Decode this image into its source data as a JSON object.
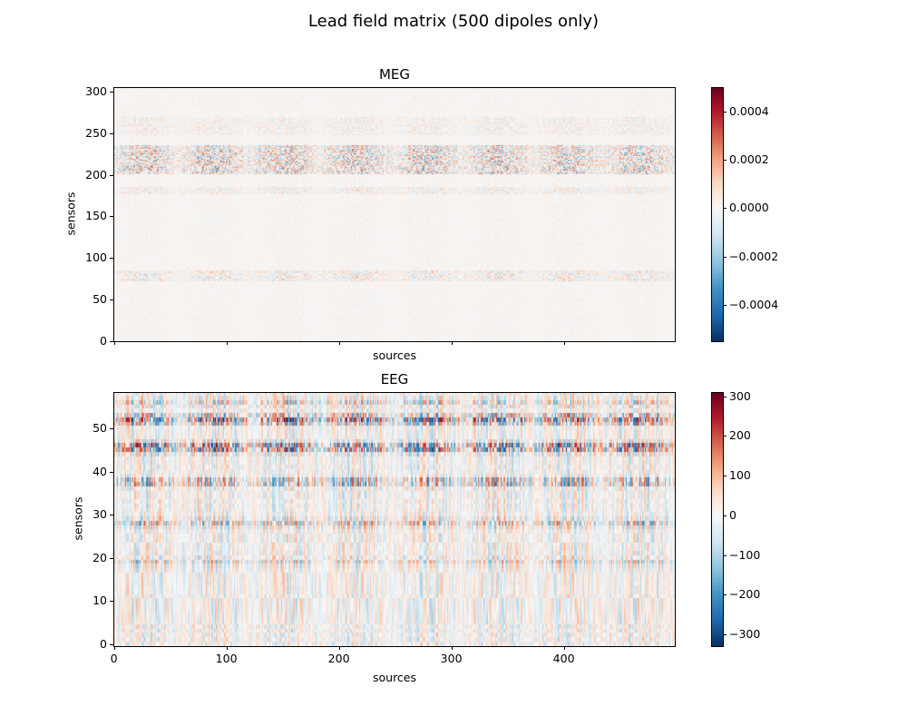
{
  "suptitle": "Lead field matrix (500 dipoles only)",
  "chart_data": [
    {
      "type": "heatmap",
      "title": "MEG",
      "xlabel": "sources",
      "ylabel": "sensors",
      "shape": [
        306,
        500
      ],
      "xlim": [
        -0.5,
        499.5
      ],
      "ylim": [
        -0.5,
        305.5
      ],
      "xticks": [
        0,
        100,
        200,
        300,
        400
      ],
      "xtick_labels_shown": false,
      "yticks": [
        "0",
        "50",
        "100",
        "150",
        "200",
        "250",
        "300"
      ],
      "colormap": "RdBu_r",
      "clim": [
        -0.00055,
        0.0005
      ],
      "colorbar_ticks": [
        "0.0004",
        "0.0002",
        "0.0000",
        "−0.0002",
        "−0.0004"
      ],
      "colorbar_tick_values": [
        0.0004,
        0.0002,
        0,
        -0.0002,
        -0.0004
      ]
    },
    {
      "type": "heatmap",
      "title": "EEG",
      "xlabel": "sources",
      "ylabel": "sensors",
      "shape": [
        59,
        500
      ],
      "xlim": [
        -0.5,
        499.5
      ],
      "ylim": [
        -0.5,
        58.5
      ],
      "xticks": [
        "0",
        "100",
        "200",
        "300",
        "400"
      ],
      "yticks": [
        "0",
        "10",
        "20",
        "30",
        "40",
        "50"
      ],
      "colormap": "RdBu_r",
      "clim": [
        -330,
        311
      ],
      "colorbar_ticks": [
        "300",
        "200",
        "100",
        "0",
        "−100",
        "−200",
        "−300"
      ],
      "colorbar_tick_values": [
        300,
        200,
        100,
        0,
        -100,
        -200,
        -300
      ]
    }
  ]
}
